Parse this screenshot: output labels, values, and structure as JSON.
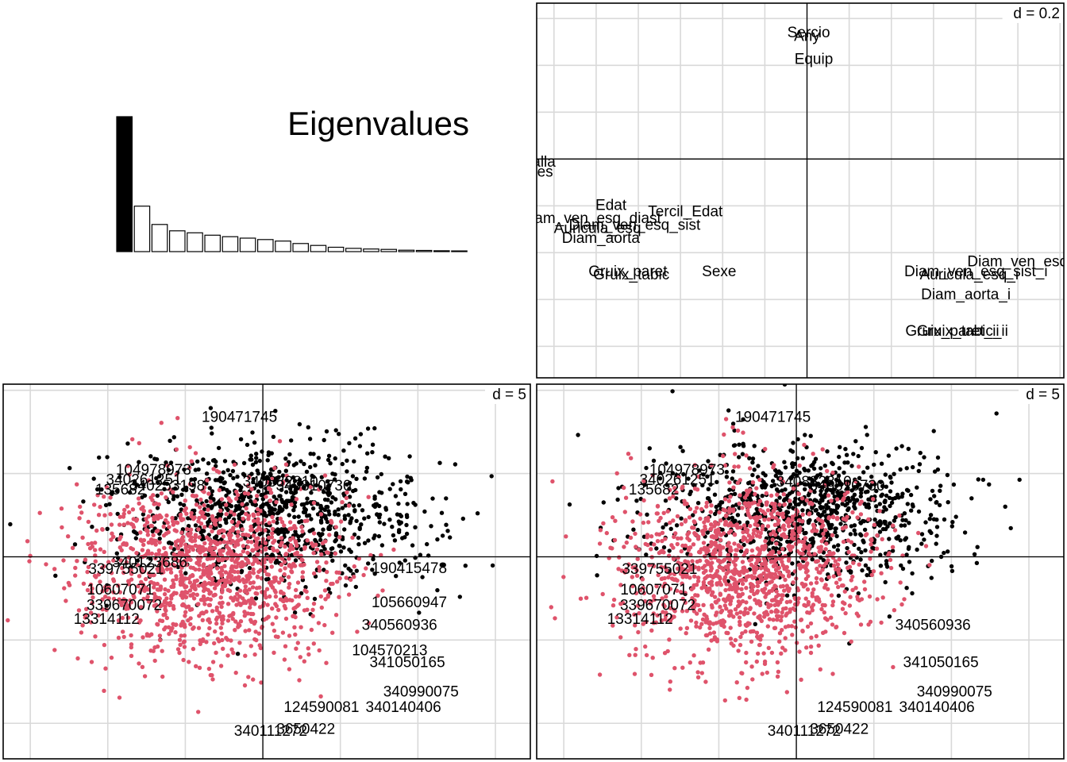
{
  "colors": {
    "black_group": "#000000",
    "red_group": "#DF536B",
    "grid": "#d9d9d9",
    "frame": "#000000"
  },
  "chart_data": [
    {
      "type": "bar",
      "title": "Eigenvalues",
      "values": [
        9.2,
        3.1,
        1.85,
        1.42,
        1.28,
        1.12,
        1.02,
        0.92,
        0.82,
        0.72,
        0.55,
        0.42,
        0.3,
        0.22,
        0.18,
        0.15,
        0.1,
        0.08,
        0.06,
        0.05
      ]
    },
    {
      "type": "scatter",
      "title": "",
      "scale_label": "d = 0.2",
      "grid": true,
      "xlim": [
        -0.8,
        0.76
      ],
      "ylim": [
        -0.66,
        0.47
      ],
      "labels": [
        {
          "text": "Sercio",
          "x": 0.005,
          "y": 0.38
        },
        {
          "text": "Any",
          "x": 0.0,
          "y": 0.37
        },
        {
          "text": "Equip",
          "x": 0.02,
          "y": 0.3
        },
        {
          "text": "Talla",
          "x": -0.79,
          "y": -0.01
        },
        {
          "text": "Pes",
          "x": -0.79,
          "y": -0.04
        },
        {
          "text": "Edat",
          "x": -0.58,
          "y": -0.14
        },
        {
          "text": "Tercil_Edat",
          "x": -0.36,
          "y": -0.16
        },
        {
          "text": "Diam_ven_esq_diast",
          "x": -0.64,
          "y": -0.18
        },
        {
          "text": "Diam_ven_esq_sist",
          "x": -0.51,
          "y": -0.2
        },
        {
          "text": "Auricula_esq",
          "x": -0.62,
          "y": -0.21
        },
        {
          "text": "Diam_aorta",
          "x": -0.61,
          "y": -0.24
        },
        {
          "text": "Gruix_paret",
          "x": -0.53,
          "y": -0.34
        },
        {
          "text": "Gruix_tabic",
          "x": -0.52,
          "y": -0.35
        },
        {
          "text": "Sexe",
          "x": -0.26,
          "y": -0.34
        },
        {
          "text": "Diam_ven_esq_diast_i",
          "x": 0.7,
          "y": -0.31
        },
        {
          "text": "Diam_ven_esq_sist_i",
          "x": 0.5,
          "y": -0.34
        },
        {
          "text": "Auricula_esq_i",
          "x": 0.48,
          "y": -0.35
        },
        {
          "text": "Diam_aorta_i",
          "x": 0.47,
          "y": -0.41
        },
        {
          "text": "Gruix_paret_ii",
          "x": 0.43,
          "y": -0.52
        },
        {
          "text": "Gruix_tabic_ii",
          "x": 0.46,
          "y": -0.52
        }
      ]
    },
    {
      "type": "scatter",
      "title": "",
      "scale_label": "d = 5",
      "grid": true,
      "xlim": [
        -13.3,
        13.7
      ],
      "ylim": [
        -10.3,
        8.8
      ],
      "series": [
        {
          "color": "#000000",
          "n": 900,
          "cx": 0.5,
          "cy": 2.2,
          "sx": 3.8,
          "sy": 1.8
        },
        {
          "color": "#DF536B",
          "n": 1300,
          "cx": -2.7,
          "cy": -0.6,
          "sx": 3.2,
          "sy": 2.3
        }
      ],
      "labels": [
        {
          "text": "190471745",
          "x": -1.2,
          "y": 7.1
        },
        {
          "text": "104978973",
          "x": -5.6,
          "y": 4.4
        },
        {
          "text": "340261251",
          "x": -6.1,
          "y": 3.9
        },
        {
          "text": "135682",
          "x": -7.3,
          "y": 3.4
        },
        {
          "text": "340253198",
          "x": -4.9,
          "y": 3.6
        },
        {
          "text": "340882810",
          "x": 0.9,
          "y": 3.8
        },
        {
          "text": "340810730",
          "x": 2.6,
          "y": 3.6
        },
        {
          "text": "340123686",
          "x": -5.8,
          "y": -0.3
        },
        {
          "text": "339755021",
          "x": -7.0,
          "y": -0.65
        },
        {
          "text": "10607071",
          "x": -7.3,
          "y": -1.7
        },
        {
          "text": "339670072",
          "x": -7.1,
          "y": -2.5
        },
        {
          "text": "13314112",
          "x": -8.0,
          "y": -3.2
        },
        {
          "text": "190415478",
          "x": 7.5,
          "y": -0.6
        },
        {
          "text": "105660947",
          "x": 7.5,
          "y": -2.35
        },
        {
          "text": "340560936",
          "x": 7.0,
          "y": -3.5
        },
        {
          "text": "104570213",
          "x": 6.5,
          "y": -4.8
        },
        {
          "text": "341050165",
          "x": 7.4,
          "y": -5.4
        },
        {
          "text": "340990075",
          "x": 8.1,
          "y": -6.9
        },
        {
          "text": "124590081",
          "x": 3.0,
          "y": -7.7
        },
        {
          "text": "340140406",
          "x": 7.2,
          "y": -7.7
        },
        {
          "text": "3650422",
          "x": 2.2,
          "y": -8.8
        },
        {
          "text": "340111272",
          "x": 0.4,
          "y": -8.9
        }
      ]
    },
    {
      "type": "scatter",
      "title": "",
      "scale_label": "d = 5",
      "grid": true,
      "xlim": [
        -13.3,
        13.7
      ],
      "ylim": [
        -10.3,
        8.8
      ],
      "series": [
        {
          "color": "#000000",
          "n": 900,
          "cx": 0.5,
          "cy": 2.2,
          "sx": 3.8,
          "sy": 1.8
        },
        {
          "color": "#DF536B",
          "n": 1300,
          "cx": -2.7,
          "cy": -0.6,
          "sx": 3.2,
          "sy": 2.3
        }
      ],
      "labels": [
        {
          "text": "190471745",
          "x": -1.2,
          "y": 7.1
        },
        {
          "text": "104978973",
          "x": -5.6,
          "y": 4.4
        },
        {
          "text": "340261251",
          "x": -6.1,
          "y": 3.9
        },
        {
          "text": "135682",
          "x": -7.3,
          "y": 3.4
        },
        {
          "text": "340882810",
          "x": 0.9,
          "y": 3.8
        },
        {
          "text": "340810730",
          "x": 2.6,
          "y": 3.6
        },
        {
          "text": "339755021",
          "x": -7.0,
          "y": -0.65
        },
        {
          "text": "10607071",
          "x": -7.3,
          "y": -1.7
        },
        {
          "text": "339670072",
          "x": -7.1,
          "y": -2.5
        },
        {
          "text": "13314112",
          "x": -8.0,
          "y": -3.2
        },
        {
          "text": "340560936",
          "x": 7.0,
          "y": -3.5
        },
        {
          "text": "341050165",
          "x": 7.4,
          "y": -5.4
        },
        {
          "text": "340990075",
          "x": 8.1,
          "y": -6.9
        },
        {
          "text": "124590081",
          "x": 3.0,
          "y": -7.7
        },
        {
          "text": "340140406",
          "x": 7.2,
          "y": -7.7
        },
        {
          "text": "3650422",
          "x": 2.2,
          "y": -8.8
        },
        {
          "text": "340111272",
          "x": 0.4,
          "y": -8.9
        }
      ]
    }
  ]
}
